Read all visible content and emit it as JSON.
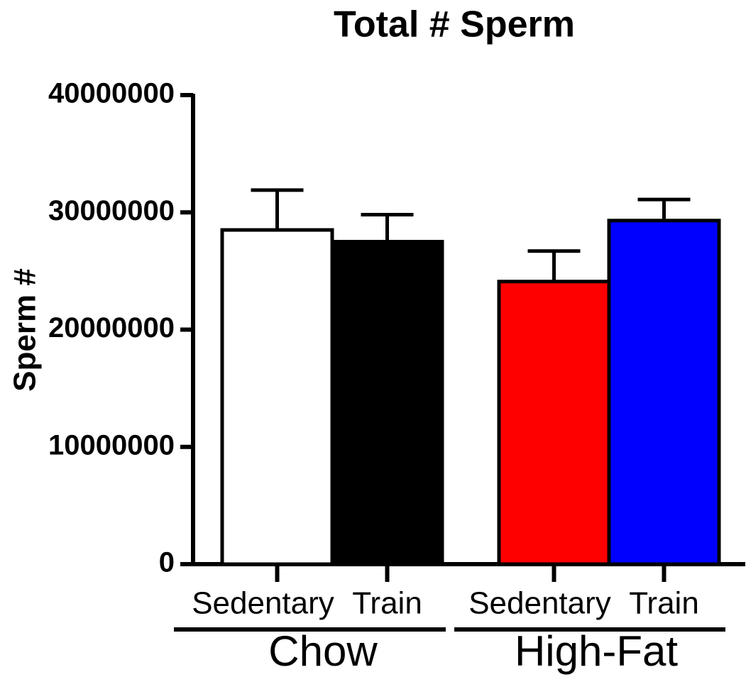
{
  "chart_data": {
    "type": "bar",
    "title": "Total # Sperm",
    "y_label": "Sperm #",
    "categories": [
      "Sedentary",
      "Train",
      "Sedentary",
      "Train"
    ],
    "groups": [
      "Chow",
      "High-Fat"
    ],
    "values": [
      28500000,
      27500000,
      24100000,
      29300000
    ],
    "errors": [
      3400000,
      2300000,
      2600000,
      1800000
    ],
    "colors": [
      "#ffffff",
      "#000000",
      "#ff0000",
      "#0000ff"
    ],
    "ylim": [
      0,
      40000000
    ],
    "yticks": [
      0,
      10000000,
      20000000,
      30000000,
      40000000
    ],
    "grid": false
  }
}
